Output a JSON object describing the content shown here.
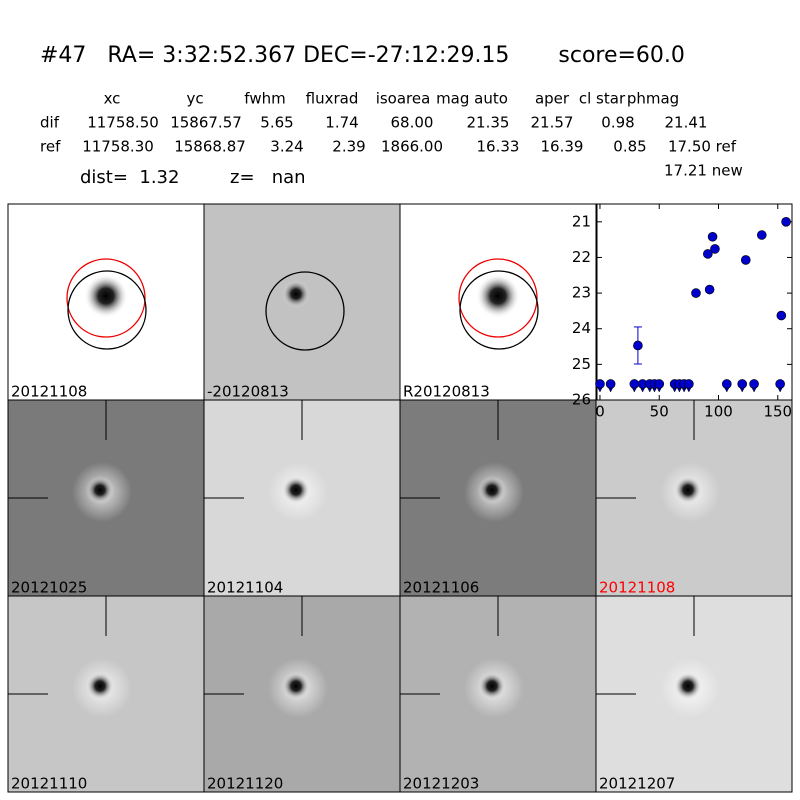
{
  "header": {
    "title": "#47   RA= 3:32:52.367 DEC=-27:12:29.15       score=60.0",
    "columns": [
      "xc",
      "yc",
      "fwhm",
      "fluxrad",
      "isoarea",
      "mag auto",
      "aper",
      "cl star",
      "phmag"
    ],
    "rows": [
      {
        "label": "dif",
        "cells": [
          "11758.50",
          "15867.57",
          "5.65",
          "1.74",
          "68.00",
          "21.35",
          "21.57",
          "0.98",
          "21.41"
        ]
      },
      {
        "label": "ref",
        "cells": [
          "11758.30",
          "15868.87",
          "3.24",
          "2.39",
          "1866.00",
          "16.33",
          "16.39",
          "0.85",
          "17.50 ref"
        ]
      }
    ],
    "extra": "17.21 new",
    "dist": "dist=  1.32",
    "z": "z=   nan"
  },
  "panels": [
    {
      "label": "20121108"
    },
    {
      "label": "-20120813"
    },
    {
      "label": "R20120813"
    },
    {
      "label": "20121025"
    },
    {
      "label": "20121104"
    },
    {
      "label": "20121106"
    },
    {
      "label": "20121108",
      "label_color": "#ff0000"
    },
    {
      "label": "20121110"
    },
    {
      "label": "20121120"
    },
    {
      "label": "20121203"
    },
    {
      "label": "20121207"
    }
  ],
  "chart_data": {
    "type": "scatter",
    "xlim": [
      -2.5,
      162
    ],
    "ylim": [
      26,
      20.5
    ],
    "xticks": [
      0,
      50,
      100,
      150
    ],
    "yticks": [
      21,
      22,
      23,
      24,
      25,
      26
    ],
    "series": [
      {
        "marker": "circle",
        "color": "#0000cc",
        "x": [
          32,
          81,
          91,
          92.5,
          95,
          97,
          123,
          136.5,
          153,
          157
        ],
        "values": [
          24.47,
          23.0,
          21.9,
          22.9,
          21.42,
          21.76,
          22.07,
          21.37,
          23.63,
          21.0
        ],
        "errors": [
          0.52,
          null,
          null,
          null,
          null,
          null,
          null,
          null,
          null,
          null
        ]
      },
      {
        "marker": "limit",
        "color": "#0000cc",
        "x": [
          0,
          9,
          29,
          36,
          42,
          46,
          50,
          63,
          67,
          71,
          75,
          107,
          120,
          130,
          152
        ],
        "values": [
          25.55,
          25.55,
          25.55,
          25.55,
          25.55,
          25.55,
          25.55,
          25.55,
          25.55,
          25.55,
          25.55,
          25.55,
          25.55,
          25.55,
          25.55
        ]
      }
    ]
  }
}
